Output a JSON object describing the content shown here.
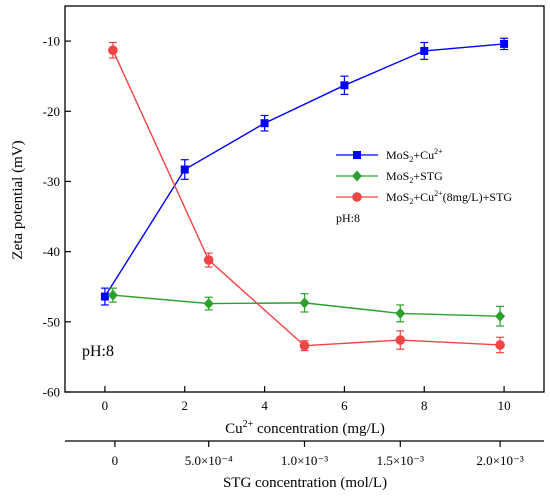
{
  "chart_data": {
    "type": "line",
    "ylabel": "Zeta potential (mV)",
    "ylim": [
      -60,
      -5
    ],
    "y_ticks": [
      -60,
      -50,
      -40,
      -30,
      -20,
      -10
    ],
    "x_primary": {
      "label_main": "Cu",
      "label_sup": "2+",
      "label_rest": " concentration (mg/L)",
      "lim": [
        -1,
        11
      ],
      "ticks": [
        0,
        2,
        4,
        6,
        8,
        10
      ]
    },
    "x_secondary": {
      "label": "STG concentration (mol/L)",
      "ticks": [
        {
          "x": 0.25,
          "label": "0"
        },
        {
          "x": 2.6,
          "label": "5.0×10⁻⁴"
        },
        {
          "x": 5.0,
          "label": "1.0×10⁻³"
        },
        {
          "x": 7.4,
          "label": "1.5×10⁻³"
        },
        {
          "x": 9.9,
          "label": "2.0×10⁻³"
        }
      ]
    },
    "series": [
      {
        "name": "MoS₂+Cu²⁺",
        "color": "#0000ff",
        "marker": "square",
        "x": [
          0,
          2,
          4,
          6,
          8,
          10
        ],
        "y": [
          -46.4,
          -28.3,
          -21.7,
          -16.3,
          -11.4,
          -10.4
        ],
        "err": [
          1.2,
          1.4,
          1.1,
          1.3,
          1.2,
          0.8
        ]
      },
      {
        "name": "MoS₂+STG",
        "color": "#2ca02c",
        "marker": "diamond",
        "x": [
          0.2,
          2.6,
          5.0,
          7.4,
          9.9
        ],
        "y": [
          -46.2,
          -47.4,
          -47.3,
          -48.8,
          -49.2
        ],
        "err": [
          1.0,
          0.9,
          1.3,
          1.2,
          1.4
        ]
      },
      {
        "name": "MoS₂+Cu²⁺(8mg/L)+STG",
        "color": "#f04545",
        "marker": "circle",
        "x": [
          0.2,
          2.6,
          5.0,
          7.4,
          9.9
        ],
        "y": [
          -11.3,
          -41.2,
          -53.4,
          -52.6,
          -53.3
        ],
        "err": [
          1.1,
          1.0,
          0.7,
          1.3,
          1.1
        ]
      }
    ],
    "legend_position": "center-right",
    "legend_labels": [
      {
        "base": "MoS",
        "sub": "2",
        "plus": "+Cu",
        "sup": "2+",
        "rest": ""
      },
      {
        "base": "MoS",
        "sub": "2",
        "plus": "+STG",
        "sup": "",
        "rest": ""
      },
      {
        "base": "MoS",
        "sub": "2",
        "plus": "+Cu",
        "sup": "2+",
        "rest": "(8mg/L)+STG"
      }
    ],
    "annotations": {
      "legend_note": "pH:8",
      "plot_note": "pH:8"
    },
    "grid": false
  }
}
